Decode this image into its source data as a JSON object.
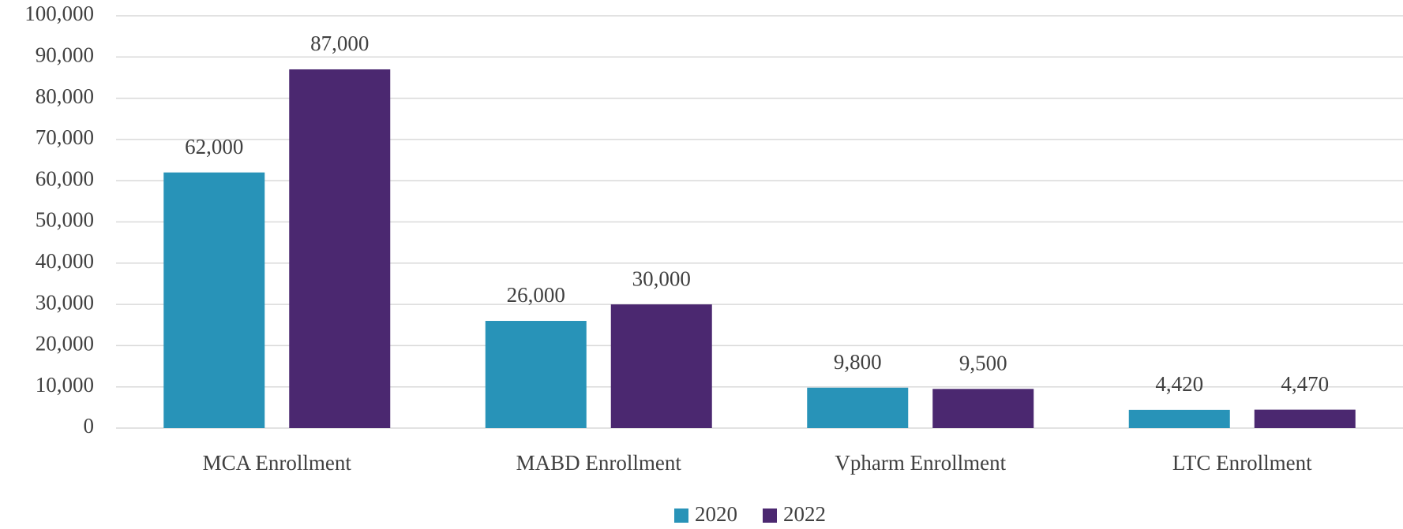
{
  "chart_data": {
    "type": "bar",
    "categories": [
      "MCA Enrollment",
      "MABD Enrollment",
      "Vpharm Enrollment",
      "LTC Enrollment"
    ],
    "series": [
      {
        "name": "2020",
        "color": "#2893b8",
        "values": [
          62000,
          26000,
          9800,
          4420
        ],
        "value_labels": [
          "62,000",
          "26,000",
          "9,800",
          "4,420"
        ]
      },
      {
        "name": "2022",
        "color": "#4b2870",
        "values": [
          87000,
          30000,
          9500,
          4470
        ],
        "value_labels": [
          "87,000",
          "30,000",
          "9,500",
          "4,470"
        ]
      }
    ],
    "ylim": [
      0,
      100000
    ],
    "yticks": [
      0,
      {
        "value": 10000,
        "label": "10,000"
      },
      {
        "value": 20000,
        "label": "20,000"
      },
      {
        "value": 30000,
        "label": "30,000"
      },
      {
        "value": 40000,
        "label": "40,000"
      },
      {
        "value": 50000,
        "label": "50,000"
      },
      {
        "value": 60000,
        "label": "60,000"
      },
      {
        "value": 70000,
        "label": "70,000"
      },
      {
        "value": 80000,
        "label": "80,000"
      },
      {
        "value": 90000,
        "label": "90,000"
      },
      {
        "value": 100000,
        "label": "100,000"
      }
    ],
    "grid": true,
    "legend": "bottom"
  }
}
